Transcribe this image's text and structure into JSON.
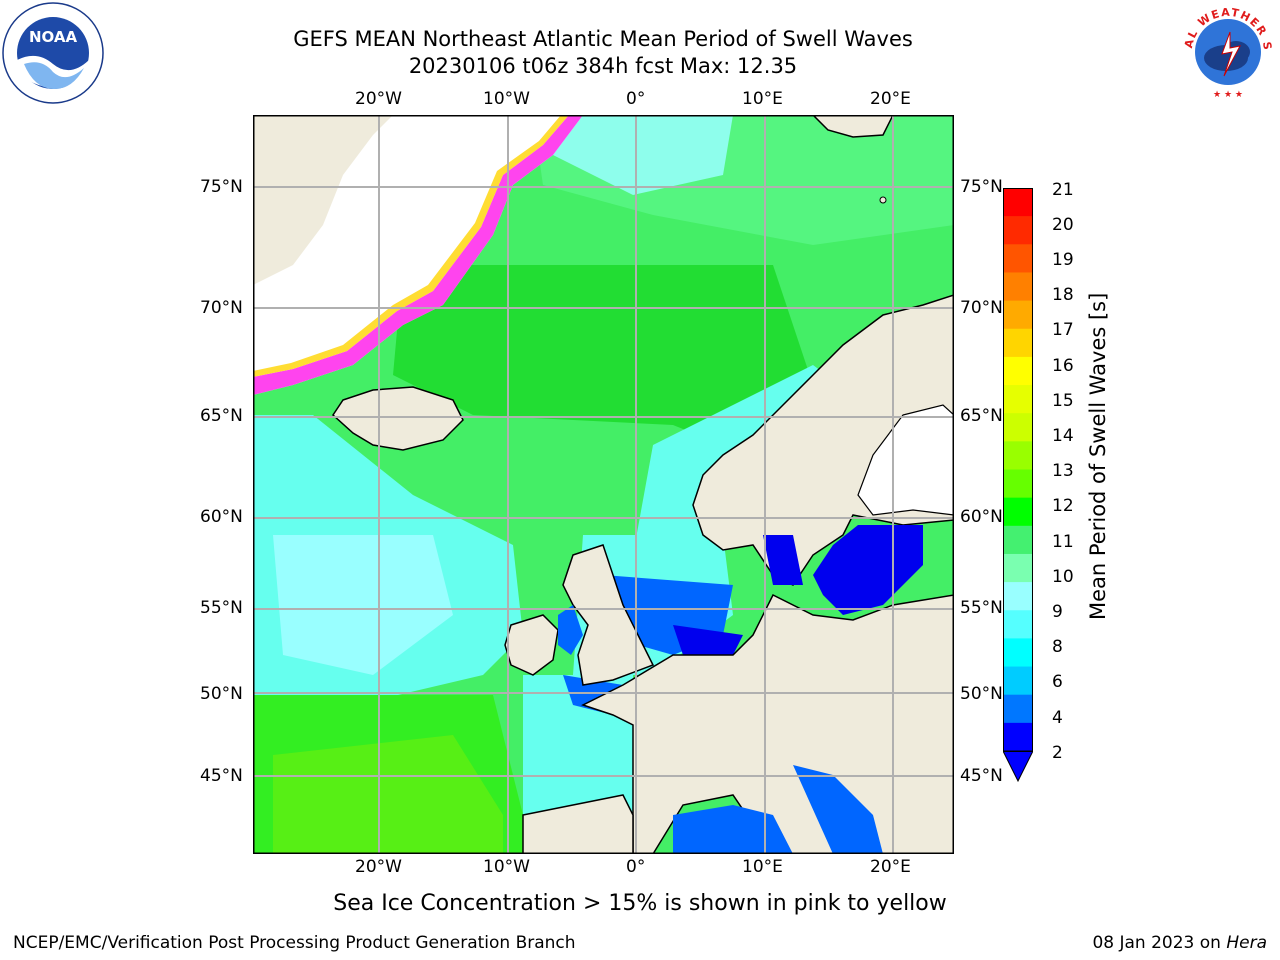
{
  "header": {
    "title_line1": "GEFS MEAN Northeast Atlantic Mean Period of Swell Waves",
    "title_line2": "20230106 t06z 384h fcst   Max: 12.35"
  },
  "logos": {
    "left": {
      "name": "noaa-logo",
      "text": "NOAA"
    },
    "right": {
      "name": "nws-logo",
      "text": "NATIONAL WEATHER SERVICE"
    }
  },
  "map": {
    "lon_labels_top": [
      "20°W",
      "10°W",
      "0°",
      "10°E",
      "20°E"
    ],
    "lon_labels_bottom": [
      "20°W",
      "10°W",
      "0°",
      "10°E",
      "20°E"
    ],
    "lat_labels_left": [
      "75°N",
      "70°N",
      "65°N",
      "60°N",
      "55°N",
      "50°N",
      "45°N"
    ],
    "lat_labels_right": [
      "75°N",
      "70°N",
      "65°N",
      "60°N",
      "55°N",
      "50°N",
      "45°N"
    ],
    "colors": {
      "ocean_deep_green": "#22dd33",
      "ocean_green": "#44ee66",
      "ocean_light_green": "#55f580",
      "ocean_cyan": "#66ffee",
      "ocean_light_cyan": "#99ffff",
      "ocean_blue": "#0066ff",
      "ocean_dark_blue": "#0000ee",
      "land": "#efebdc",
      "ice_pink": "#ff44ee",
      "ice_yellow": "#ffdd33",
      "grid": "#b0b0b0"
    }
  },
  "colorbar": {
    "title": "Mean Period of Swell Waves [s]",
    "ticks": [
      "21",
      "20",
      "19",
      "18",
      "17",
      "16",
      "15",
      "14",
      "13",
      "12",
      "11",
      "10",
      "9",
      "8",
      "6",
      "4",
      "2"
    ],
    "colors": [
      "#ff0000",
      "#ff2a00",
      "#ff5500",
      "#ff8000",
      "#ffaa00",
      "#ffd500",
      "#ffff00",
      "#e6ff00",
      "#ccff00",
      "#99ff00",
      "#66ff00",
      "#00ff00",
      "#44f070",
      "#7affb0",
      "#99ffff",
      "#55ffff",
      "#00ffff",
      "#00ccff",
      "#0077ff",
      "#0000ff"
    ]
  },
  "caption": "Sea Ice Concentration > 15% is shown in pink to yellow",
  "footer": {
    "left": "NCEP/EMC/Verification Post Processing Product Generation Branch",
    "right_prefix": "08 Jan 2023 on ",
    "right_host": "Hera"
  }
}
